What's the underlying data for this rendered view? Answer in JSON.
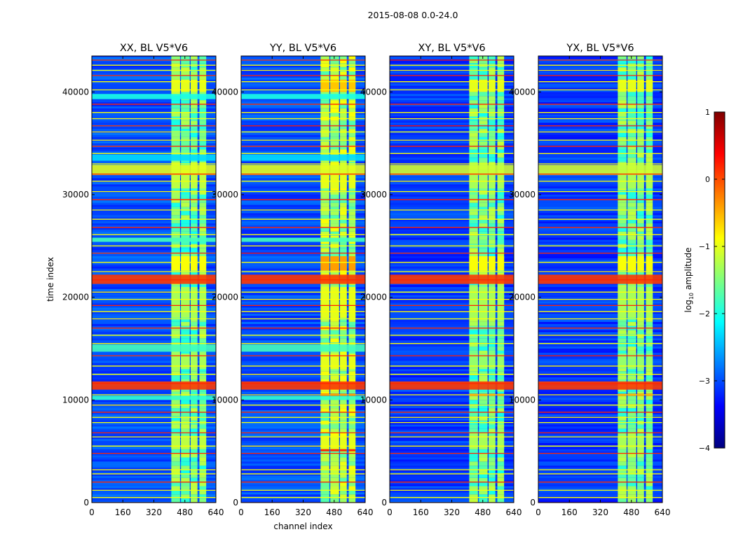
{
  "figure_title": "2015-08-08 0.0-24.0",
  "colorbar": {
    "label_main": "log",
    "label_sub": "10",
    "label_tail": " amplitude",
    "range": [
      -4,
      1
    ],
    "ticks": [
      1,
      0,
      -1,
      -2,
      -3,
      -4
    ],
    "tick_labels": [
      "1",
      "0",
      "−1",
      "−2",
      "−3",
      "−4"
    ],
    "colormap": "jet",
    "stops": [
      "#00007f",
      "#0000ff",
      "#007fff",
      "#00ffff",
      "#7fff7f",
      "#ffff00",
      "#ff7f00",
      "#ff0000",
      "#7f0000"
    ]
  },
  "chart_data": [
    {
      "type": "heatmap",
      "title": "XX, BL V5*V6",
      "xlabel": "",
      "ylabel": "time index",
      "xlim": [
        0,
        640
      ],
      "ylim": [
        0,
        43500
      ],
      "xticks": [
        0,
        160,
        320,
        480,
        640
      ],
      "yticks": [
        0,
        10000,
        20000,
        30000,
        40000
      ],
      "xtick_labels": [
        "0",
        "160",
        "320",
        "480",
        "640"
      ],
      "ytick_labels": [
        "0",
        "10000",
        "20000",
        "30000",
        "40000"
      ],
      "background_value": -3.0,
      "rfi_channel_blocks": [
        [
          410,
          455
        ],
        [
          460,
          505
        ],
        [
          510,
          545
        ],
        [
          555,
          590
        ]
      ],
      "rfi_level": -1.6,
      "rfi_strong_bands": [
        [
          40000,
          41200,
          -1.0
        ],
        [
          32000,
          30600,
          -1.2
        ],
        [
          24000,
          22600,
          -0.9
        ],
        [
          21000,
          18000,
          -1.3
        ],
        [
          14500,
          13000,
          -1.3
        ],
        [
          6500,
          5200,
          -1.2
        ]
      ],
      "wide_bands": [
        [
          31900,
          32900,
          -1.0
        ],
        [
          21300,
          22200,
          0.1
        ],
        [
          11000,
          11800,
          0.1
        ],
        [
          14700,
          15400,
          -1.8
        ],
        [
          25400,
          25800,
          -1.8
        ],
        [
          33300,
          33900,
          -2.3
        ],
        [
          39300,
          39800,
          -2.0
        ],
        [
          10000,
          10400,
          -1.9
        ]
      ],
      "flag_lines": [
        0,
        500,
        1200,
        2000,
        2800,
        3200,
        4800,
        5500,
        6400,
        6800,
        7800,
        8300,
        8800,
        9500,
        10500,
        11600,
        12500,
        13300,
        14300,
        15500,
        16300,
        17000,
        17900,
        18600,
        19200,
        19800,
        20500,
        21700,
        22500,
        23400,
        24300,
        25000,
        26100,
        26800,
        27600,
        28500,
        29500,
        30300,
        31300,
        32000,
        33000,
        34000,
        34700,
        35300,
        36100,
        36700,
        37400,
        38000,
        38800,
        40200,
        41000,
        41600,
        42100,
        42600,
        43100
      ]
    },
    {
      "type": "heatmap",
      "title": "YY, BL V5*V6",
      "xlabel": "channel index",
      "ylabel": "",
      "xlim": [
        0,
        640
      ],
      "ylim": [
        0,
        43500
      ],
      "xticks": [
        0,
        160,
        320,
        480,
        640
      ],
      "yticks": [
        0,
        10000,
        20000,
        30000,
        40000
      ],
      "xtick_labels": [
        "0",
        "160",
        "320",
        "480",
        "640"
      ],
      "ytick_labels": [
        "0",
        "10000",
        "20000",
        "30000",
        "40000"
      ],
      "background_value": -3.0,
      "rfi_channel_blocks": [
        [
          410,
          455
        ],
        [
          460,
          505
        ],
        [
          510,
          545
        ],
        [
          555,
          590
        ]
      ],
      "rfi_level": -1.3,
      "rfi_strong_bands": [
        [
          40000,
          41200,
          -0.6
        ],
        [
          32000,
          30600,
          -1.0
        ],
        [
          24000,
          22600,
          -0.4
        ],
        [
          21000,
          18000,
          -1.0
        ],
        [
          14500,
          13000,
          -1.0
        ],
        [
          6500,
          5200,
          -1.0
        ],
        [
          10600,
          10400,
          0.3
        ],
        [
          5200,
          5000,
          0.2
        ]
      ],
      "wide_bands": [
        [
          31900,
          32900,
          -1.0
        ],
        [
          21300,
          22200,
          0.1
        ],
        [
          11000,
          11800,
          0.1
        ],
        [
          14700,
          15400,
          -1.8
        ],
        [
          25400,
          25800,
          -1.8
        ],
        [
          33300,
          33900,
          -2.3
        ],
        [
          39300,
          39800,
          -2.0
        ],
        [
          10000,
          10400,
          -1.9
        ]
      ],
      "flag_lines": [
        0,
        500,
        1200,
        2000,
        2800,
        3200,
        4800,
        5500,
        6400,
        6800,
        7800,
        8300,
        8800,
        9500,
        10500,
        11600,
        12500,
        13300,
        14300,
        15500,
        16300,
        17000,
        17900,
        18600,
        19200,
        19800,
        20500,
        21700,
        22500,
        23400,
        24300,
        25000,
        26100,
        26800,
        27600,
        28500,
        29500,
        30300,
        31300,
        32000,
        33000,
        34000,
        34700,
        35300,
        36100,
        36700,
        37400,
        38000,
        38800,
        40200,
        41000,
        41600,
        42100,
        42600,
        43100
      ]
    },
    {
      "type": "heatmap",
      "title": "XY, BL V5*V6",
      "xlabel": "",
      "ylabel": "",
      "xlim": [
        0,
        640
      ],
      "ylim": [
        0,
        43500
      ],
      "xticks": [
        0,
        160,
        320,
        480,
        640
      ],
      "yticks": [
        0,
        10000,
        20000,
        30000,
        40000
      ],
      "xtick_labels": [
        "0",
        "160",
        "320",
        "480",
        "640"
      ],
      "ytick_labels": [
        "0",
        "10000",
        "20000",
        "30000",
        "40000"
      ],
      "background_value": -3.1,
      "rfi_channel_blocks": [
        [
          410,
          455
        ],
        [
          460,
          505
        ],
        [
          510,
          545
        ],
        [
          555,
          590
        ]
      ],
      "rfi_level": -1.6,
      "rfi_strong_bands": [
        [
          40000,
          41200,
          -1.0
        ],
        [
          32000,
          30600,
          -1.3
        ],
        [
          24000,
          22600,
          -0.9
        ],
        [
          21000,
          18000,
          -1.3
        ],
        [
          14500,
          13000,
          -1.4
        ],
        [
          6500,
          5200,
          -1.3
        ],
        [
          10600,
          10400,
          0.0
        ]
      ],
      "wide_bands": [
        [
          31900,
          32900,
          -1.1
        ],
        [
          21300,
          22200,
          0.1
        ],
        [
          11000,
          11800,
          0.1
        ]
      ],
      "flag_lines": [
        0,
        500,
        1200,
        2000,
        2800,
        3200,
        4800,
        5500,
        6400,
        6800,
        7800,
        8300,
        8800,
        9500,
        10500,
        11600,
        12500,
        13300,
        14300,
        15500,
        16300,
        17000,
        17900,
        18600,
        19200,
        19800,
        20500,
        21700,
        22500,
        23400,
        24300,
        25000,
        26100,
        26800,
        27600,
        28500,
        29500,
        30300,
        31300,
        32000,
        33000,
        34000,
        34700,
        35300,
        36100,
        36700,
        37400,
        38000,
        38800,
        40200,
        41000,
        41600,
        42100,
        42600,
        43100
      ]
    },
    {
      "type": "heatmap",
      "title": "YX, BL V5*V6",
      "xlabel": "",
      "ylabel": "",
      "xlim": [
        0,
        640
      ],
      "ylim": [
        0,
        43500
      ],
      "xticks": [
        0,
        160,
        320,
        480,
        640
      ],
      "yticks": [
        0,
        10000,
        20000,
        30000,
        40000
      ],
      "xtick_labels": [
        "0",
        "160",
        "320",
        "480",
        "640"
      ],
      "ytick_labels": [
        "0",
        "10000",
        "20000",
        "30000",
        "40000"
      ],
      "background_value": -3.1,
      "rfi_channel_blocks": [
        [
          410,
          455
        ],
        [
          460,
          505
        ],
        [
          510,
          545
        ],
        [
          555,
          590
        ]
      ],
      "rfi_level": -1.6,
      "rfi_strong_bands": [
        [
          40000,
          41200,
          -1.0
        ],
        [
          32000,
          30600,
          -1.3
        ],
        [
          24000,
          22600,
          -0.9
        ],
        [
          21000,
          18000,
          -1.3
        ],
        [
          14500,
          13000,
          -1.4
        ],
        [
          6500,
          5200,
          -1.3
        ],
        [
          10600,
          10400,
          0.0
        ]
      ],
      "wide_bands": [
        [
          31900,
          32900,
          -1.1
        ],
        [
          21300,
          22200,
          0.1
        ],
        [
          11000,
          11800,
          0.1
        ]
      ],
      "flag_lines": [
        0,
        500,
        1200,
        2000,
        2800,
        3200,
        4800,
        5500,
        6400,
        6800,
        7800,
        8300,
        8800,
        9500,
        10500,
        11600,
        12500,
        13300,
        14300,
        15500,
        16300,
        17000,
        17900,
        18600,
        19200,
        19800,
        20500,
        21700,
        22500,
        23400,
        24300,
        25000,
        26100,
        26800,
        27600,
        28500,
        29500,
        30300,
        31300,
        32000,
        33000,
        34000,
        34700,
        35300,
        36100,
        36700,
        37400,
        38000,
        38800,
        40200,
        41000,
        41600,
        42100,
        42600,
        43100
      ]
    }
  ]
}
